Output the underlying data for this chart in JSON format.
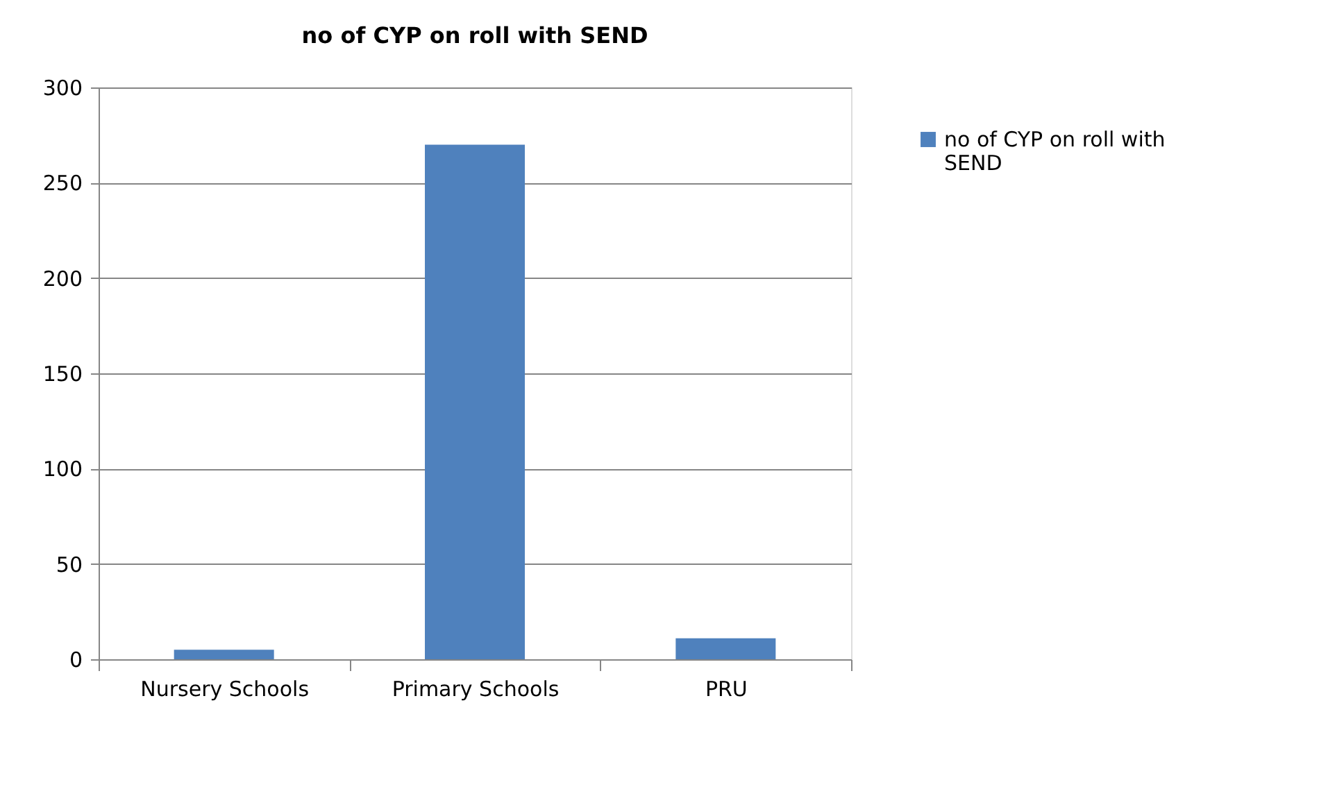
{
  "chart_data": {
    "type": "bar",
    "title": "no of CYP on roll with SEND",
    "categories": [
      "Nursery Schools",
      "Primary Schools",
      "PRU"
    ],
    "series": [
      {
        "name": "no of CYP on roll with SEND",
        "color": "#4f81bd",
        "values": [
          5,
          270,
          11
        ]
      }
    ],
    "ylim": [
      0,
      300
    ],
    "yticks": [
      0,
      50,
      100,
      150,
      200,
      250,
      300
    ],
    "grid": "y",
    "legend": "right"
  }
}
